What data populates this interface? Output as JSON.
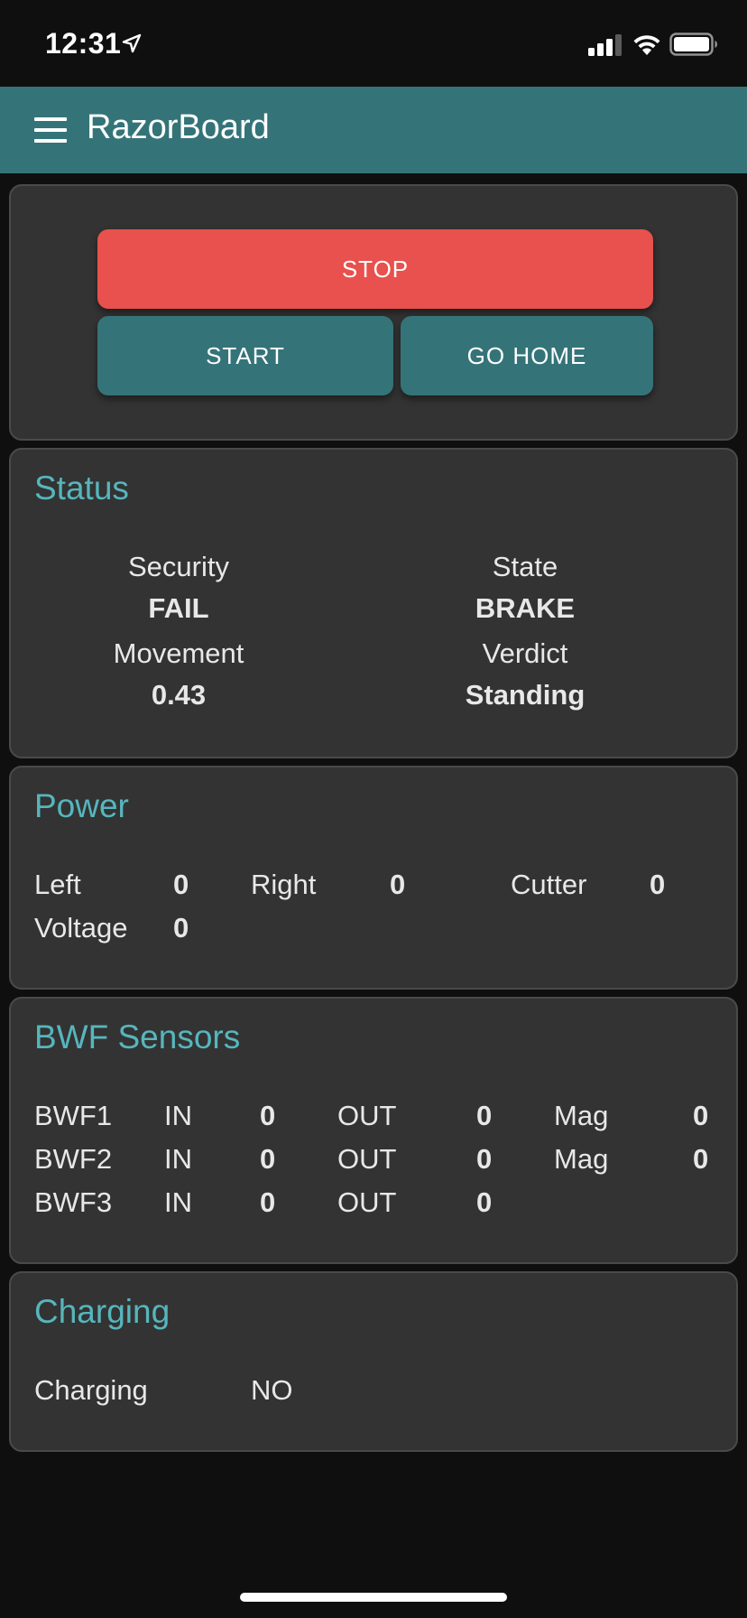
{
  "status_bar": {
    "time": "12:31",
    "icons": [
      "location-arrow-icon",
      "cellular-signal-icon",
      "wifi-icon",
      "battery-icon"
    ]
  },
  "app_bar": {
    "title": "RazorBoard",
    "menu_icon": "hamburger-menu-icon"
  },
  "controls": {
    "stop_label": "STOP",
    "start_label": "START",
    "go_home_label": "GO HOME"
  },
  "status": {
    "title": "Status",
    "security_label": "Security",
    "security_value": "FAIL",
    "state_label": "State",
    "state_value": "BRAKE",
    "movement_label": "Movement",
    "movement_value": "0.43",
    "verdict_label": "Verdict",
    "verdict_value": "Standing"
  },
  "power": {
    "title": "Power",
    "left_label": "Left",
    "left_value": "0",
    "right_label": "Right",
    "right_value": "0",
    "cutter_label": "Cutter",
    "cutter_value": "0",
    "voltage_label": "Voltage",
    "voltage_value": "0"
  },
  "bwf": {
    "title": "BWF Sensors",
    "rows": [
      {
        "name": "BWF1",
        "in_label": "IN",
        "in_value": "0",
        "out_label": "OUT",
        "out_value": "0",
        "mag_label": "Mag",
        "mag_value": "0"
      },
      {
        "name": "BWF2",
        "in_label": "IN",
        "in_value": "0",
        "out_label": "OUT",
        "out_value": "0",
        "mag_label": "Mag",
        "mag_value": "0"
      },
      {
        "name": "BWF3",
        "in_label": "IN",
        "in_value": "0",
        "out_label": "OUT",
        "out_value": "0"
      }
    ]
  },
  "charging": {
    "title": "Charging",
    "label": "Charging",
    "value": "NO"
  },
  "colors": {
    "appbar": "#347479",
    "accent_title": "#56b6bd",
    "stop": "#e8514d",
    "card": "#333333",
    "background": "#0f0f0f"
  }
}
